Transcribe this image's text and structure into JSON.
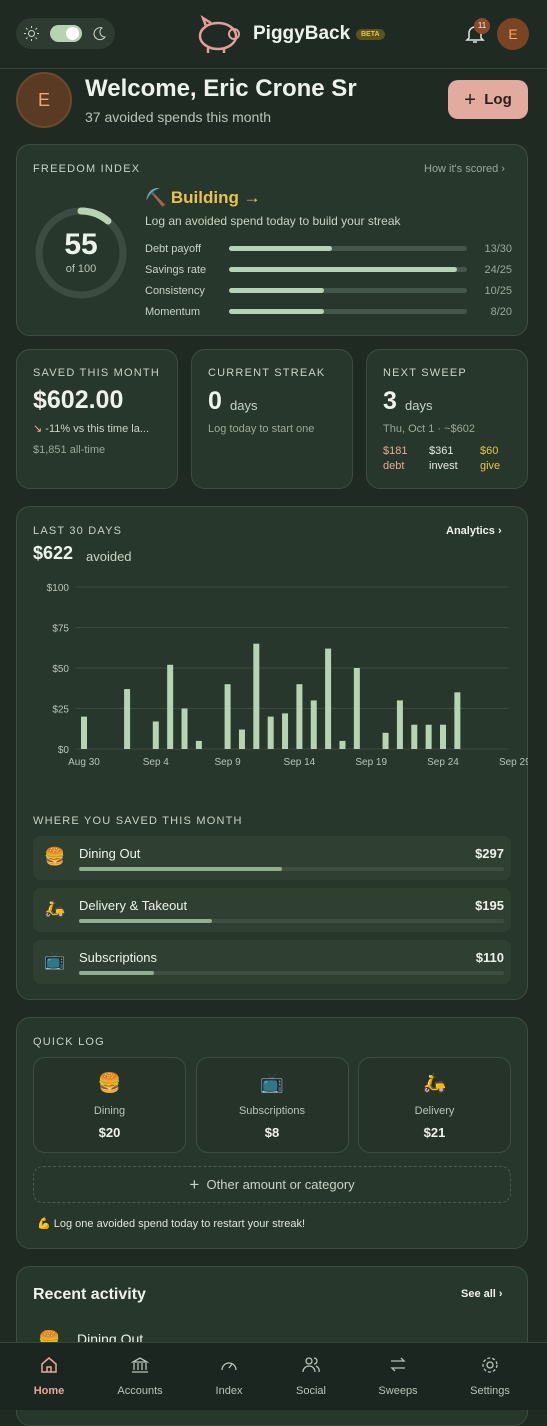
{
  "header": {
    "app_name": "PiggyBack",
    "beta": "BETA",
    "notifications": "11",
    "avatar": "E"
  },
  "welcome": {
    "avatar": "E",
    "title": "Welcome, Eric Crone Sr",
    "subtitle": "37 avoided spends this month",
    "log_button": "Log"
  },
  "freedom": {
    "label": "FREEDOM INDEX",
    "link": "How it's scored",
    "score": 55,
    "of": "of 100",
    "status": "Building →",
    "hint": "Log an avoided spend today to build your streak",
    "metrics": [
      {
        "name": "Debt payoff",
        "value": 13,
        "max": 30,
        "label": "13/30"
      },
      {
        "name": "Savings rate",
        "value": 24,
        "max": 25,
        "label": "24/25"
      },
      {
        "name": "Consistency",
        "value": 10,
        "max": 25,
        "label": "10/25"
      },
      {
        "name": "Momentum",
        "value": 8,
        "max": 20,
        "label": "8/20"
      }
    ]
  },
  "saved": {
    "label": "SAVED THIS MONTH",
    "amount": "$602.00",
    "change": "-11% vs this time la...",
    "alltime": "$1,851 all-time"
  },
  "streak": {
    "label": "CURRENT STREAK",
    "value": "0",
    "unit": "days",
    "hint": "Log today to start one"
  },
  "sweep": {
    "label": "NEXT SWEEP",
    "value": "3",
    "unit": "days",
    "date": "Thu, Oct 1 · ~$602",
    "splits": [
      {
        "amount": "$181",
        "label": "debt"
      },
      {
        "amount": "$361",
        "label": "invest"
      },
      {
        "amount": "$60",
        "label": "give"
      }
    ]
  },
  "activity": {
    "label": "LAST 30 DAYS",
    "link": "Analytics",
    "total": "$622",
    "total_suffix": "avoided"
  },
  "chart_data": {
    "type": "bar",
    "color": "#b7d3b3",
    "categories": [
      "Aug 30",
      null,
      null,
      null,
      null,
      "Sep 4",
      null,
      null,
      null,
      null,
      "Sep 9",
      null,
      null,
      null,
      null,
      "Sep 14",
      null,
      null,
      null,
      null,
      "Sep 19",
      null,
      null,
      null,
      null,
      "Sep 24",
      null,
      null,
      null,
      null,
      "Sep 29"
    ],
    "values": [
      20,
      0,
      0,
      37,
      0,
      17,
      52,
      25,
      5,
      0,
      40,
      12,
      65,
      20,
      22,
      40,
      30,
      62,
      5,
      50,
      0,
      10,
      30,
      15,
      15,
      15,
      35,
      0,
      0,
      0,
      0
    ],
    "ylim": [
      0,
      100
    ],
    "yticks": [
      {
        "value": 0,
        "label": "$0"
      },
      {
        "value": 25,
        "label": "$25"
      },
      {
        "value": 50,
        "label": "$50"
      },
      {
        "value": 75,
        "label": "$75"
      },
      {
        "value": 100,
        "label": "$100"
      }
    ],
    "grid": true
  },
  "where": {
    "title": "WHERE YOU SAVED THIS MONTH",
    "items": [
      {
        "icon": "🍔",
        "name": "Dining Out",
        "amount": "$297",
        "value": 297
      },
      {
        "icon": "🛵",
        "name": "Delivery & Takeout",
        "amount": "$195",
        "value": 195
      },
      {
        "icon": "📺",
        "name": "Subscriptions",
        "amount": "$110",
        "value": 110
      }
    ]
  },
  "quick_log": {
    "title": "QUICK LOG",
    "items": [
      {
        "icon": "🍔",
        "name": "Dining",
        "amount": "$20"
      },
      {
        "icon": "📺",
        "name": "Subscriptions",
        "amount": "$8"
      },
      {
        "icon": "🛵",
        "name": "Delivery",
        "amount": "$21"
      }
    ],
    "other": "Other amount or category",
    "hint": "💪 Log one avoided spend today to restart your streak!"
  },
  "recent": {
    "title": "Recent activity",
    "link": "See all",
    "first_item": "Dining Out"
  },
  "nav": [
    "Home",
    "Accounts",
    "Index",
    "Social",
    "Sweeps",
    "Settings"
  ]
}
